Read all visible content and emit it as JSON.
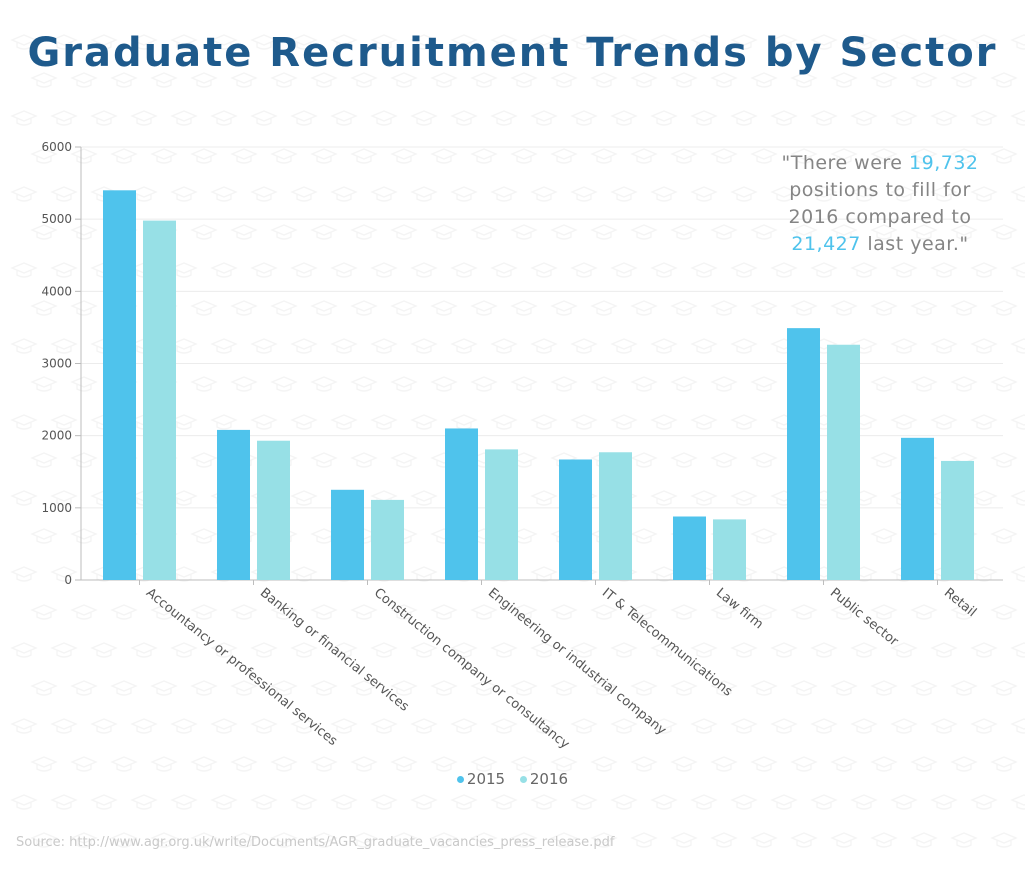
{
  "title": "Graduate Recruitment Trends by Sector",
  "quote": {
    "part1": "\"There were ",
    "highlight1": "19,732",
    "part2": " positions to fill for 2016 compared to ",
    "highlight2": "21,427",
    "part3": " last year.\""
  },
  "source": "Source: http://www.agr.org.uk/write/Documents/AGR_graduate_vacancies_press_release.pdf",
  "colors": {
    "title": "#1e5a8c",
    "series_2015": "#4fc3ec",
    "series_2016": "#97e0e6",
    "highlight": "#4fc3ec"
  },
  "icons": {
    "background": "graduation-cap-icon"
  },
  "chart_data": {
    "type": "bar",
    "title": "Graduate Recruitment Trends by Sector",
    "categories": [
      "Accountancy or professional services",
      "Banking or financial services",
      "Construction company or consultancy",
      "Engineering or industrial company",
      "IT & Telecommunications",
      "Law firm",
      "Public sector",
      "Retail"
    ],
    "series": [
      {
        "name": "2015",
        "color": "#4fc3ec",
        "values": [
          5400,
          2080,
          1250,
          2100,
          1670,
          880,
          3490,
          1970
        ]
      },
      {
        "name": "2016",
        "color": "#97e0e6",
        "values": [
          4980,
          1930,
          1110,
          1810,
          1770,
          840,
          3260,
          1650
        ]
      }
    ],
    "yticks": [
      "0",
      "1000",
      "2000",
      "3000",
      "4000",
      "5000",
      "6000"
    ],
    "ylim": [
      0,
      6000
    ],
    "xlabel": "",
    "ylabel": "",
    "grid": true,
    "legend_position": "bottom"
  }
}
